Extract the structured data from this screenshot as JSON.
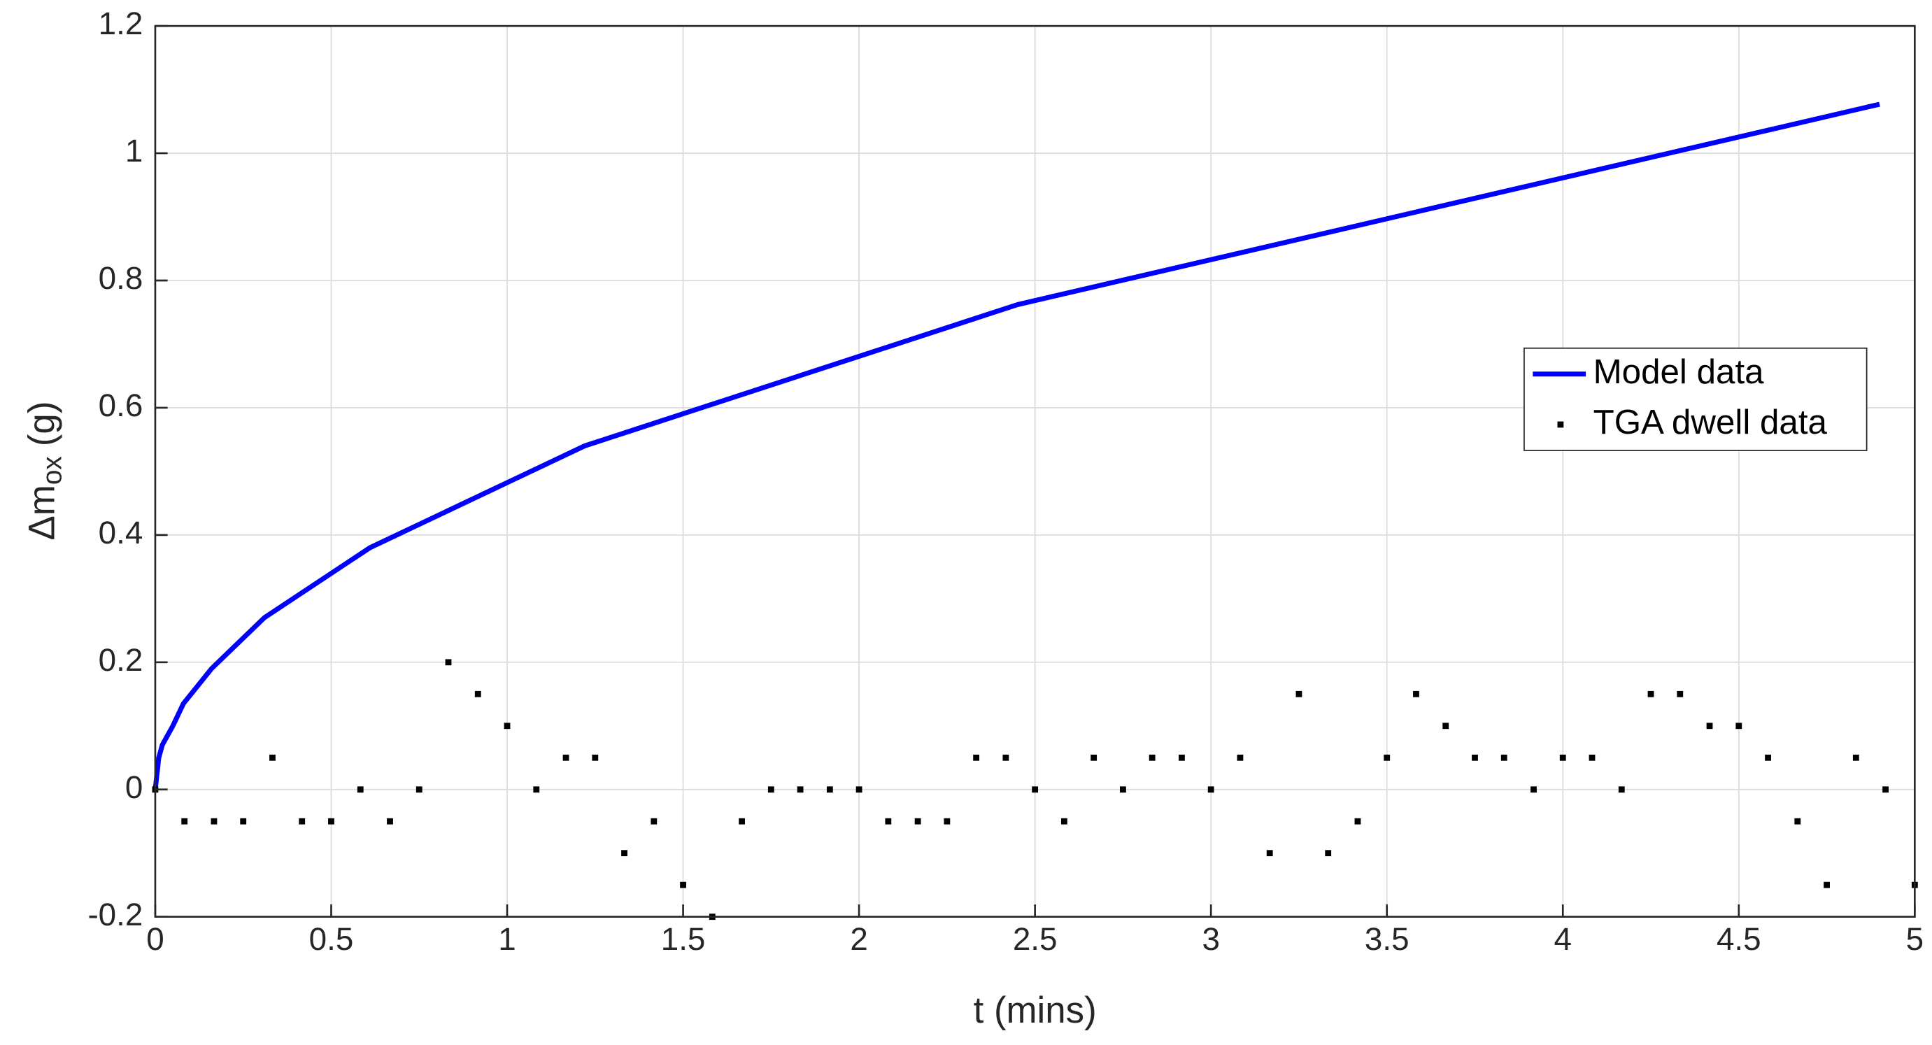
{
  "chart_data": {
    "type": "line",
    "xlabel": "t (mins)",
    "ylabel": {
      "text": "Δm",
      "subscript": "ox",
      "suffix": "(g)"
    },
    "xlim": [
      0,
      5
    ],
    "xticks": [
      0,
      0.5,
      1,
      1.5,
      2,
      2.5,
      3,
      3.5,
      4,
      4.5,
      5
    ],
    "ylim": [
      -0.2,
      1.2
    ],
    "yticks": [
      -0.2,
      0,
      0.2,
      0.4,
      0.6,
      0.8,
      1,
      1.2
    ],
    "grid": true,
    "legend_loc": "right",
    "series": [
      {
        "name": "Model data",
        "color": "#0000ff",
        "style": "line",
        "x": [
          0,
          0.01,
          0.02,
          0.05,
          0.08,
          0.16,
          0.31,
          0.61,
          1.22,
          2.45,
          4.9
        ],
        "values": [
          0,
          0.05,
          0.07,
          0.1,
          0.135,
          0.19,
          0.27,
          0.38,
          0.54,
          0.762,
          1.077
        ]
      },
      {
        "name": "TGA dwell data",
        "color": "#000000",
        "style": "markers",
        "x": [
          0,
          0.083,
          0.167,
          0.25,
          0.333,
          0.417,
          0.5,
          0.583,
          0.667,
          0.75,
          0.833,
          0.917,
          1,
          1.083,
          1.167,
          1.25,
          1.333,
          1.417,
          1.5,
          1.583,
          1.667,
          1.75,
          1.833,
          1.917,
          2,
          2.083,
          2.167,
          2.25,
          2.333,
          2.417,
          2.5,
          2.583,
          2.667,
          2.75,
          2.833,
          2.917,
          3,
          3.083,
          3.167,
          3.25,
          3.333,
          3.417,
          3.5,
          3.583,
          3.667,
          3.75,
          3.833,
          3.917,
          4,
          4.083,
          4.167,
          4.25,
          4.333,
          4.417,
          4.5,
          4.583,
          4.667,
          4.75,
          4.833,
          4.917,
          5
        ],
        "values": [
          0,
          -0.05,
          -0.05,
          -0.05,
          0.05,
          -0.05,
          -0.05,
          0,
          -0.05,
          0,
          0.2,
          0.15,
          0.1,
          0,
          0.05,
          0.05,
          -0.1,
          -0.05,
          -0.15,
          -0.2,
          -0.05,
          0,
          0,
          0,
          0,
          -0.05,
          -0.05,
          -0.05,
          0.05,
          0.05,
          0,
          -0.05,
          0.05,
          0,
          0.05,
          0.05,
          0,
          0.05,
          -0.1,
          0.15,
          -0.1,
          -0.05,
          0.05,
          0.15,
          0.1,
          0.05,
          0.05,
          0,
          0.05,
          0.05,
          0,
          0.15,
          0.15,
          0.1,
          0.1,
          0.05,
          -0.05,
          -0.15,
          0.05,
          0,
          -0.15
        ]
      }
    ]
  }
}
